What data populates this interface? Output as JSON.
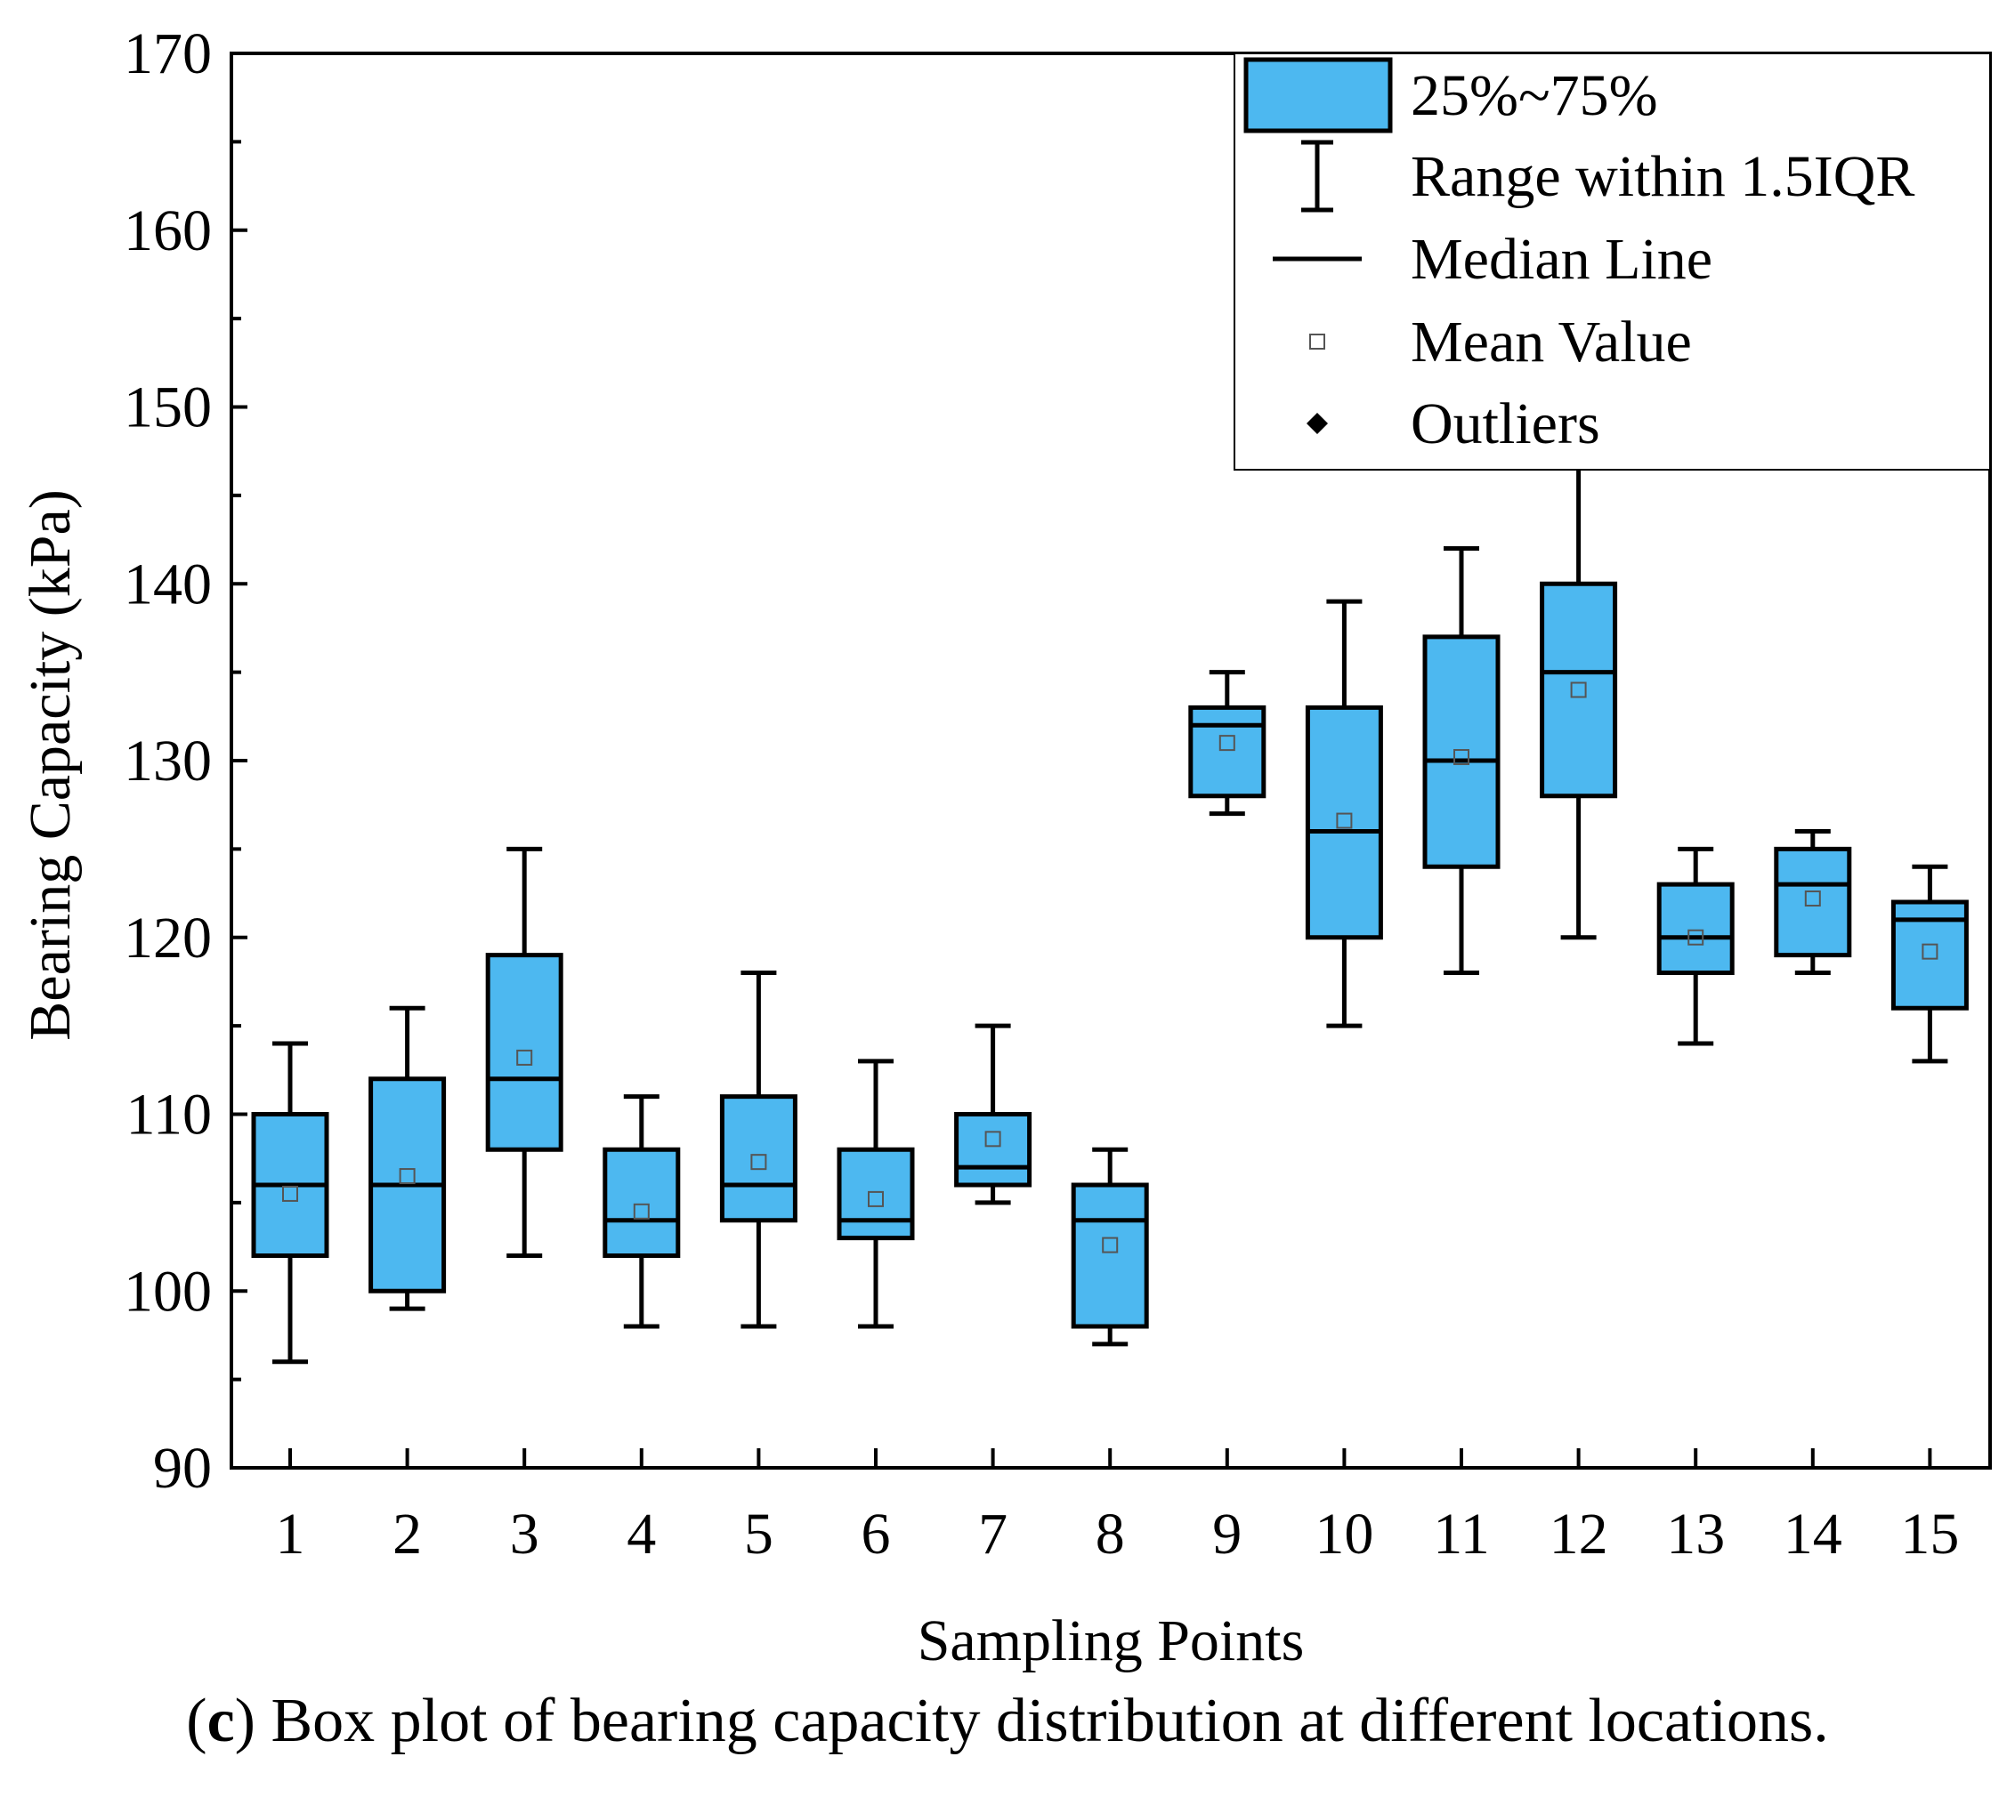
{
  "caption": {
    "letter": "c",
    "text": "Box plot of bearing capacity distribution at different locations."
  },
  "colors": {
    "box_fill": "#4db8f0",
    "stroke": "#000000"
  },
  "chart_data": {
    "type": "box",
    "xlabel": "Sampling Points",
    "ylabel": "Bearing Capacity (kPa)",
    "ylim": [
      90,
      170
    ],
    "yticks": [
      90,
      100,
      110,
      120,
      130,
      140,
      150,
      160,
      170
    ],
    "legend_position": "top-right",
    "legend": [
      {
        "key": "box",
        "label": "25%~75%"
      },
      {
        "key": "whisker",
        "label": "Range within 1.5IQR"
      },
      {
        "key": "median",
        "label": "Median Line"
      },
      {
        "key": "mean",
        "label": "Mean Value"
      },
      {
        "key": "outlier",
        "label": "Outliers"
      }
    ],
    "categories": [
      "1",
      "2",
      "3",
      "4",
      "5",
      "6",
      "7",
      "8",
      "9",
      "10",
      "11",
      "12",
      "13",
      "14",
      "15"
    ],
    "boxes": [
      {
        "whisker_low": 96,
        "q1": 102,
        "median": 106,
        "q3": 110,
        "whisker_high": 114,
        "mean": 105.5
      },
      {
        "whisker_low": 99,
        "q1": 100,
        "median": 106,
        "q3": 112,
        "whisker_high": 116,
        "mean": 106.5
      },
      {
        "whisker_low": 102,
        "q1": 108,
        "median": 112,
        "q3": 119,
        "whisker_high": 125,
        "mean": 113.2
      },
      {
        "whisker_low": 98,
        "q1": 102,
        "median": 104,
        "q3": 108,
        "whisker_high": 111,
        "mean": 104.5
      },
      {
        "whisker_low": 98,
        "q1": 104,
        "median": 106,
        "q3": 111,
        "whisker_high": 118,
        "mean": 107.3
      },
      {
        "whisker_low": 98,
        "q1": 103,
        "median": 104,
        "q3": 108,
        "whisker_high": 113,
        "mean": 105.2
      },
      {
        "whisker_low": 105,
        "q1": 106,
        "median": 107,
        "q3": 110,
        "whisker_high": 115,
        "mean": 108.6
      },
      {
        "whisker_low": 97,
        "q1": 98,
        "median": 104,
        "q3": 106,
        "whisker_high": 108,
        "mean": 102.6
      },
      {
        "whisker_low": 127,
        "q1": 128,
        "median": 132,
        "q3": 133,
        "whisker_high": 135,
        "mean": 131.0
      },
      {
        "whisker_low": 115,
        "q1": 120,
        "median": 126,
        "q3": 133,
        "whisker_high": 139,
        "mean": 126.6
      },
      {
        "whisker_low": 118,
        "q1": 124,
        "median": 130,
        "q3": 137,
        "whisker_high": 142,
        "mean": 130.2
      },
      {
        "whisker_low": 120,
        "q1": 128,
        "median": 135,
        "q3": 140,
        "whisker_high": 147,
        "mean": 134.0
      },
      {
        "whisker_low": 114,
        "q1": 118,
        "median": 120,
        "q3": 123,
        "whisker_high": 125,
        "mean": 120.0
      },
      {
        "whisker_low": 118,
        "q1": 119,
        "median": 123,
        "q3": 125,
        "whisker_high": 126,
        "mean": 122.2
      },
      {
        "whisker_low": 113,
        "q1": 116,
        "median": 121,
        "q3": 122,
        "whisker_high": 124,
        "mean": 119.2
      }
    ]
  }
}
